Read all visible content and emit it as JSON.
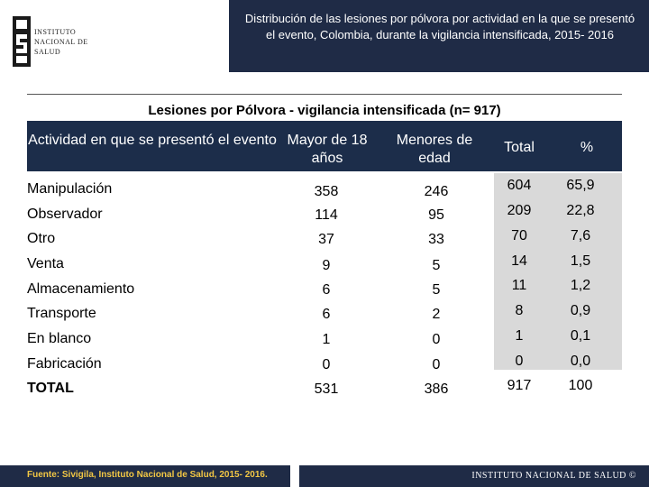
{
  "logo": {
    "lines": [
      "INSTITUTO",
      "NACIONAL DE",
      "SALUD"
    ]
  },
  "header": {
    "title": "Distribución de las lesiones por pólvora por actividad en la que se presentó el evento, Colombia, durante la vigilancia intensificada, 2015- 2016"
  },
  "table": {
    "caption": "Lesiones por Pólvora - vigilancia intensificada (n= 917)",
    "columns": [
      "Actividad en que se presentó el evento",
      "Mayor de 18 años",
      "Menores de edad",
      "Total",
      "%"
    ],
    "rows": [
      {
        "actividad": "Manipulación",
        "mayor": "358",
        "menor": "246",
        "total": "604",
        "pct": "65,9"
      },
      {
        "actividad": "Observador",
        "mayor": "114",
        "menor": "95",
        "total": "209",
        "pct": "22,8"
      },
      {
        "actividad": "Otro",
        "mayor": "37",
        "menor": "33",
        "total": "70",
        "pct": "7,6"
      },
      {
        "actividad": "Venta",
        "mayor": "9",
        "menor": "5",
        "total": "14",
        "pct": "1,5"
      },
      {
        "actividad": "Almacenamiento",
        "mayor": "6",
        "menor": "5",
        "total": "11",
        "pct": "1,2"
      },
      {
        "actividad": "Transporte",
        "mayor": "6",
        "menor": "2",
        "total": "8",
        "pct": "0,9"
      },
      {
        "actividad": "En blanco",
        "mayor": "1",
        "menor": "0",
        "total": "1",
        "pct": "0,1"
      },
      {
        "actividad": "Fabricación",
        "mayor": "0",
        "menor": "0",
        "total": "0",
        "pct": "0,0"
      },
      {
        "actividad": "TOTAL",
        "mayor": "531",
        "menor": "386",
        "total": "917",
        "pct": "100"
      }
    ]
  },
  "footer": {
    "source": "Fuente: Sivigila, Instituto Nacional de Salud, 2015- 2016.",
    "brand": "INSTITUTO NACIONAL DE SALUD ©"
  },
  "colors": {
    "header_navy": "#1f2b46",
    "table_header_navy": "#1c2d4a",
    "highlight_gray": "#d9d9d9",
    "footer_text_gold": "#f2c744"
  }
}
